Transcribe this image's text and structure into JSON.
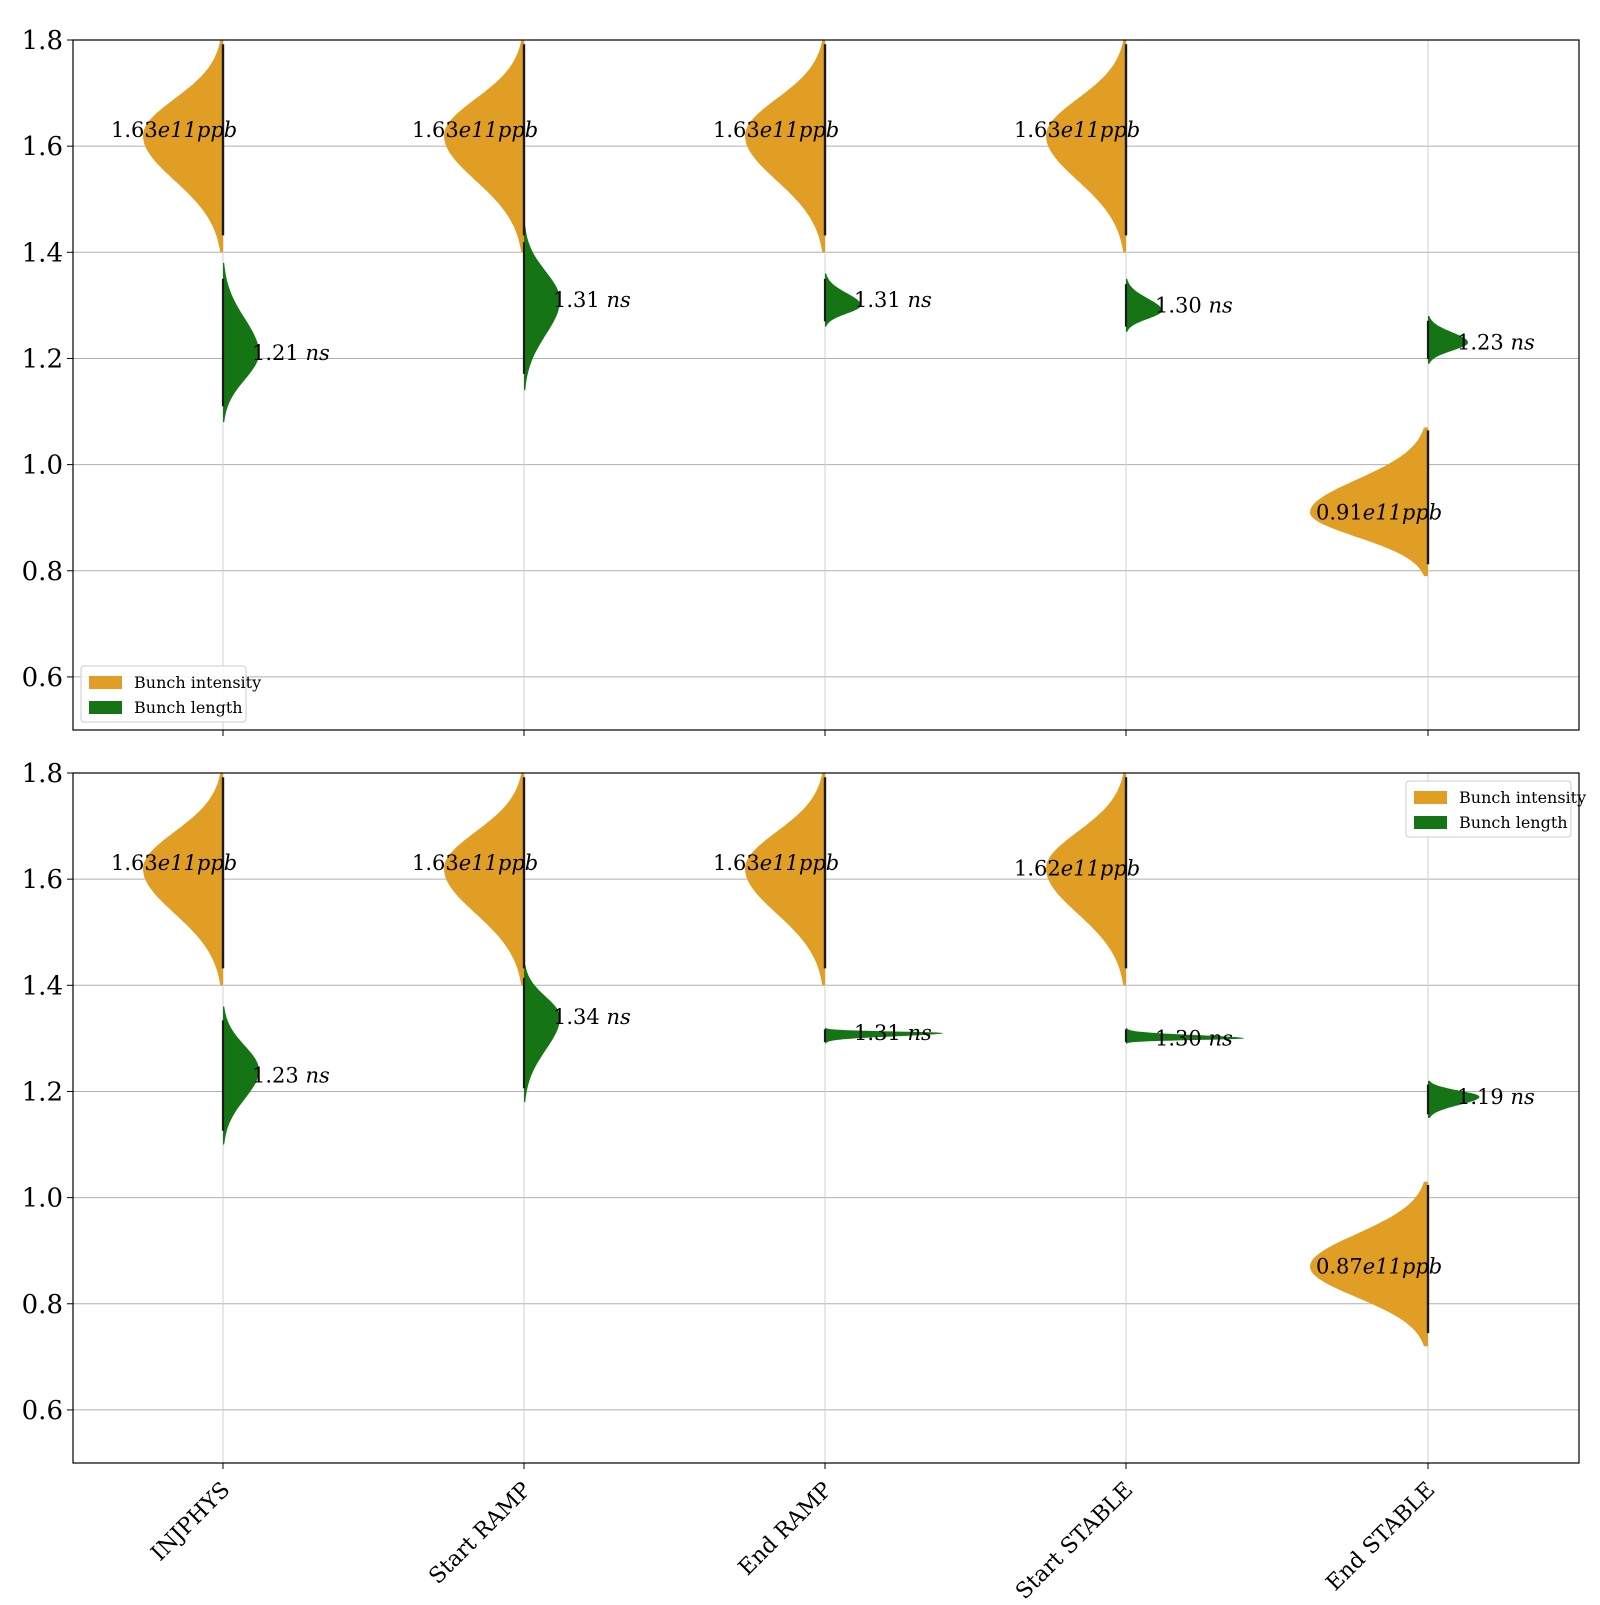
{
  "chart_data": {
    "type": "violin",
    "categories": [
      "INJPHYS",
      "Start RAMP",
      "End RAMP",
      "Start STABLE",
      "End STABLE"
    ],
    "legend": {
      "entries": [
        {
          "label": "Bunch intensity",
          "color": "#E09E24"
        },
        {
          "label": "Bunch length",
          "color": "#157515"
        }
      ]
    },
    "colors": {
      "intensity": "#E09E24",
      "length": "#157515",
      "strip": "#1a1a1a",
      "grid": "#b0b0b0"
    },
    "grid": "horizontal",
    "panels": [
      {
        "ylim": [
          0.5,
          1.8
        ],
        "yticks": [
          0.6,
          0.8,
          1.0,
          1.2,
          1.4,
          1.6,
          1.8
        ],
        "legend_position": "lower-left",
        "intensity": {
          "unit_label": "e11ppb",
          "mean": [
            1.63,
            1.63,
            1.63,
            1.63,
            0.91
          ],
          "peak": [
            1.62,
            1.62,
            1.62,
            1.62,
            0.91
          ],
          "range": [
            [
              1.4,
              1.8
            ],
            [
              1.4,
              1.8
            ],
            [
              1.4,
              1.8
            ],
            [
              1.4,
              1.8
            ],
            [
              0.79,
              1.07
            ]
          ],
          "labels": [
            "1.63",
            "1.63",
            "1.63",
            "1.63",
            "0.91"
          ]
        },
        "length": {
          "unit_label": "ns",
          "mean": [
            1.21,
            1.31,
            1.31,
            1.3,
            1.23
          ],
          "peak": [
            1.21,
            1.31,
            1.3,
            1.29,
            1.23
          ],
          "range": [
            [
              1.08,
              1.38
            ],
            [
              1.14,
              1.45
            ],
            [
              1.26,
              1.36
            ],
            [
              1.25,
              1.35
            ],
            [
              1.19,
              1.28
            ]
          ],
          "labels": [
            "1.21",
            "1.31",
            "1.31",
            "1.30",
            "1.23"
          ]
        }
      },
      {
        "ylim": [
          0.5,
          1.8
        ],
        "yticks": [
          0.6,
          0.8,
          1.0,
          1.2,
          1.4,
          1.6,
          1.8
        ],
        "legend_position": "upper-right",
        "intensity": {
          "unit_label": "e11ppb",
          "mean": [
            1.63,
            1.63,
            1.63,
            1.62,
            0.87
          ],
          "peak": [
            1.62,
            1.62,
            1.62,
            1.62,
            0.87
          ],
          "range": [
            [
              1.4,
              1.8
            ],
            [
              1.4,
              1.8
            ],
            [
              1.4,
              1.8
            ],
            [
              1.4,
              1.8
            ],
            [
              0.72,
              1.03
            ]
          ],
          "labels": [
            "1.63",
            "1.63",
            "1.63",
            "1.62",
            "0.87"
          ]
        },
        "length": {
          "unit_label": "ns",
          "mean": [
            1.23,
            1.34,
            1.31,
            1.3,
            1.19
          ],
          "peak": [
            1.24,
            1.34,
            1.31,
            1.3,
            1.19
          ],
          "range": [
            [
              1.1,
              1.36
            ],
            [
              1.18,
              1.44
            ],
            [
              1.29,
              1.32
            ],
            [
              1.29,
              1.32
            ],
            [
              1.15,
              1.22
            ]
          ],
          "labels": [
            "1.23",
            "1.34",
            "1.31",
            "1.30",
            "1.19"
          ]
        }
      }
    ]
  }
}
